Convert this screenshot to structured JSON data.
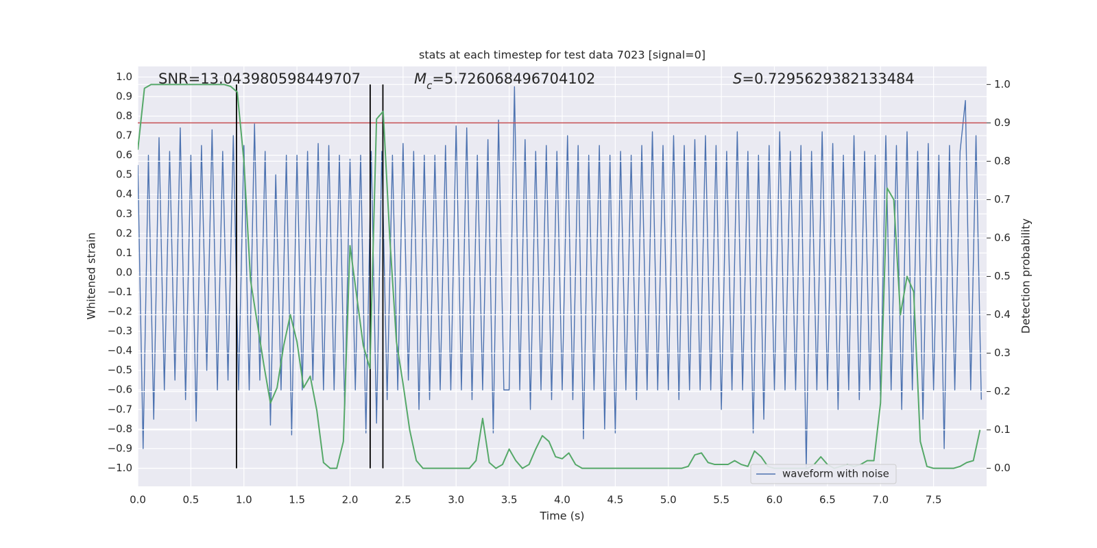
{
  "chart_data": {
    "type": "line",
    "title": "stats at each timestep for test data 7023 [signal=0]",
    "x_label": "Time (s)",
    "y_label": "Whitened strain",
    "y2_label": "Detection probability",
    "annotations": [
      {
        "text": "SNR=13.043980598449707"
      },
      {
        "symbol": "M",
        "subscript": "c",
        "text": "=5.726068496704102"
      },
      {
        "symbol": "S",
        "text": "=0.7295629382133484"
      }
    ],
    "xlim": [
      0,
      8.0
    ],
    "ylim": [
      -1.093,
      1.054
    ],
    "y2lim": [
      -0.047,
      1.047
    ],
    "xticks": [
      {
        "value": 0,
        "label": "0.0"
      },
      {
        "value": 0.5,
        "label": "0.5"
      },
      {
        "value": 1,
        "label": "1.0"
      },
      {
        "value": 1.5,
        "label": "1.5"
      },
      {
        "value": 2,
        "label": "2.0"
      },
      {
        "value": 2.5,
        "label": "2.5"
      },
      {
        "value": 3,
        "label": "3.0"
      },
      {
        "value": 3.5,
        "label": "3.5"
      },
      {
        "value": 4,
        "label": "4.0"
      },
      {
        "value": 4.5,
        "label": "4.5"
      },
      {
        "value": 5,
        "label": "5.0"
      },
      {
        "value": 5.5,
        "label": "5.5"
      },
      {
        "value": 6,
        "label": "6.0"
      },
      {
        "value": 6.5,
        "label": "6.5"
      },
      {
        "value": 7,
        "label": "7.0"
      },
      {
        "value": 7.5,
        "label": "7.5"
      }
    ],
    "yticks": [
      {
        "value": -1,
        "label": "−1.0"
      },
      {
        "value": -0.9,
        "label": "−0.9"
      },
      {
        "value": -0.8,
        "label": "−0.8"
      },
      {
        "value": -0.7,
        "label": "−0.7"
      },
      {
        "value": -0.6,
        "label": "−0.6"
      },
      {
        "value": -0.5,
        "label": "−0.5"
      },
      {
        "value": -0.4,
        "label": "−0.4"
      },
      {
        "value": -0.3,
        "label": "−0.3"
      },
      {
        "value": -0.2,
        "label": "−0.2"
      },
      {
        "value": -0.1,
        "label": "−0.1"
      },
      {
        "value": 0,
        "label": "0.0"
      },
      {
        "value": 0.1,
        "label": "0.1"
      },
      {
        "value": 0.2,
        "label": "0.2"
      },
      {
        "value": 0.3,
        "label": "0.3"
      },
      {
        "value": 0.4,
        "label": "0.4"
      },
      {
        "value": 0.5,
        "label": "0.5"
      },
      {
        "value": 0.6,
        "label": "0.6"
      },
      {
        "value": 0.7,
        "label": "0.7"
      },
      {
        "value": 0.8,
        "label": "0.8"
      },
      {
        "value": 0.9,
        "label": "0.9"
      },
      {
        "value": 1,
        "label": "1.0"
      }
    ],
    "y2ticks": [
      {
        "value": 0,
        "label": "0.0"
      },
      {
        "value": 0.1,
        "label": "0.1"
      },
      {
        "value": 0.2,
        "label": "0.2"
      },
      {
        "value": 0.3,
        "label": "0.3"
      },
      {
        "value": 0.4,
        "label": "0.4"
      },
      {
        "value": 0.5,
        "label": "0.5"
      },
      {
        "value": 0.6,
        "label": "0.6"
      },
      {
        "value": 0.7,
        "label": "0.7"
      },
      {
        "value": 0.8,
        "label": "0.8"
      },
      {
        "value": 0.9,
        "label": "0.9"
      },
      {
        "value": 1,
        "label": "1.0"
      }
    ],
    "grid": true,
    "legend": "lower right",
    "series": [
      {
        "name": "waveform with noise",
        "color": "#4c72b0",
        "x": [
          0,
          0.05,
          0.1,
          0.15,
          0.2,
          0.25,
          0.3,
          0.35,
          0.4,
          0.45,
          0.5,
          0.55,
          0.6,
          0.65,
          0.7,
          0.75,
          0.8,
          0.85,
          0.9,
          0.95,
          1,
          1.05,
          1.1,
          1.15,
          1.2,
          1.25,
          1.3,
          1.35,
          1.4,
          1.45,
          1.5,
          1.55,
          1.6,
          1.65,
          1.7,
          1.75,
          1.8,
          1.85,
          1.9,
          1.95,
          2,
          2.05,
          2.1,
          2.15,
          2.2,
          2.25,
          2.3,
          2.35,
          2.4,
          2.45,
          2.5,
          2.55,
          2.6,
          2.65,
          2.7,
          2.75,
          2.8,
          2.85,
          2.9,
          2.95,
          3,
          3.05,
          3.1,
          3.15,
          3.2,
          3.25,
          3.3,
          3.35,
          3.4,
          3.45,
          3.5,
          3.55,
          3.6,
          3.65,
          3.7,
          3.75,
          3.8,
          3.85,
          3.9,
          3.95,
          4,
          4.05,
          4.1,
          4.15,
          4.2,
          4.25,
          4.3,
          4.35,
          4.4,
          4.45,
          4.5,
          4.55,
          4.6,
          4.65,
          4.7,
          4.75,
          4.8,
          4.85,
          4.9,
          4.95,
          5,
          5.05,
          5.1,
          5.15,
          5.2,
          5.25,
          5.3,
          5.35,
          5.4,
          5.45,
          5.5,
          5.55,
          5.6,
          5.65,
          5.7,
          5.75,
          5.8,
          5.85,
          5.9,
          5.95,
          6,
          6.05,
          6.1,
          6.15,
          6.2,
          6.25,
          6.3,
          6.35,
          6.4,
          6.45,
          6.5,
          6.55,
          6.6,
          6.65,
          6.7,
          6.75,
          6.8,
          6.85,
          6.9,
          6.95,
          7,
          7.05,
          7.1,
          7.15,
          7.2,
          7.25,
          7.3,
          7.35,
          7.4,
          7.45,
          7.5,
          7.55,
          7.6,
          7.65,
          7.7,
          7.75,
          7.8,
          7.85,
          7.9,
          7.95
        ],
        "values": [
          0.55,
          -0.9,
          0.6,
          -0.75,
          0.69,
          -0.6,
          0.62,
          -0.55,
          0.74,
          -0.65,
          0.6,
          -0.76,
          0.65,
          -0.5,
          0.73,
          -0.6,
          0.62,
          -0.55,
          0.7,
          -0.6,
          0.65,
          -0.6,
          0.76,
          -0.55,
          0.62,
          -0.78,
          0.5,
          -0.6,
          0.6,
          -0.83,
          0.6,
          -0.6,
          0.62,
          -0.55,
          0.66,
          -0.6,
          0.65,
          -0.6,
          0.6,
          -0.7,
          0.58,
          -0.6,
          0.6,
          -0.82,
          0.62,
          -0.77,
          0.62,
          -0.65,
          0.6,
          -0.6,
          0.66,
          -0.55,
          0.62,
          -0.7,
          0.6,
          -0.65,
          0.6,
          -0.6,
          0.65,
          -0.6,
          0.75,
          -0.6,
          0.74,
          -0.65,
          0.6,
          -0.6,
          0.68,
          -0.82,
          0.78,
          -0.6,
          -0.6,
          0.95,
          -0.6,
          0.68,
          -0.7,
          0.62,
          -0.6,
          0.65,
          -0.65,
          0.62,
          -0.6,
          0.7,
          -0.65,
          0.65,
          -0.85,
          0.6,
          -0.6,
          0.65,
          -0.8,
          0.6,
          -0.82,
          0.62,
          -0.6,
          0.6,
          -0.65,
          0.65,
          -0.6,
          0.72,
          -0.6,
          0.65,
          -0.6,
          0.7,
          -0.65,
          0.65,
          -0.6,
          0.68,
          -0.6,
          0.7,
          -0.6,
          0.65,
          -0.7,
          0.62,
          -0.6,
          0.72,
          -0.6,
          0.62,
          -0.82,
          0.6,
          -0.75,
          0.65,
          -0.6,
          0.72,
          -0.6,
          0.62,
          -0.6,
          0.65,
          -1.0,
          0.62,
          -0.6,
          0.72,
          -0.6,
          0.66,
          -0.7,
          0.6,
          -0.6,
          0.7,
          -0.65,
          0.62,
          -0.6,
          0.6,
          -0.65,
          0.7,
          -0.6,
          0.65,
          -0.7,
          0.72,
          -0.6,
          0.62,
          -0.75,
          0.66,
          -0.6,
          0.6,
          -0.9,
          0.65,
          -0.6,
          0.62,
          0.88,
          -0.6,
          0.7,
          -0.65
        ]
      },
      {
        "color": "#55a868",
        "axis": "y2",
        "x": [
          0,
          0.0625,
          0.125,
          0.1875,
          0.25,
          0.3125,
          0.375,
          0.4375,
          0.5,
          0.5625,
          0.625,
          0.6875,
          0.75,
          0.8125,
          0.875,
          0.9375,
          1,
          1.0625,
          1.125,
          1.1875,
          1.25,
          1.3125,
          1.375,
          1.4375,
          1.5,
          1.5625,
          1.625,
          1.6875,
          1.75,
          1.8125,
          1.875,
          1.9375,
          2,
          2.0625,
          2.125,
          2.1875,
          2.25,
          2.3125,
          2.375,
          2.4375,
          2.5,
          2.5625,
          2.625,
          2.6875,
          2.75,
          2.8125,
          2.875,
          2.9375,
          3,
          3.0625,
          3.125,
          3.1875,
          3.25,
          3.3125,
          3.375,
          3.4375,
          3.5,
          3.5625,
          3.625,
          3.6875,
          3.75,
          3.8125,
          3.875,
          3.9375,
          4,
          4.0625,
          4.125,
          4.1875,
          4.25,
          4.3125,
          4.375,
          4.4375,
          4.5,
          4.5625,
          4.625,
          4.6875,
          4.75,
          4.8125,
          4.875,
          4.9375,
          5,
          5.0625,
          5.125,
          5.1875,
          5.25,
          5.3125,
          5.375,
          5.4375,
          5.5,
          5.5625,
          5.625,
          5.6875,
          5.75,
          5.8125,
          5.875,
          5.9375,
          6,
          6.0625,
          6.125,
          6.1875,
          6.25,
          6.3125,
          6.375,
          6.4375,
          6.5,
          6.5625,
          6.625,
          6.6875,
          6.75,
          6.8125,
          6.875,
          6.9375,
          7,
          7.0625,
          7.125,
          7.1875,
          7.25,
          7.3125,
          7.375,
          7.4375,
          7.5,
          7.5625,
          7.625,
          7.6875,
          7.75,
          7.8125,
          7.875,
          7.9375
        ],
        "values": [
          0.83,
          0.99,
          1.0,
          1.0,
          1.0,
          1.0,
          1.0,
          1.0,
          1.0,
          1.0,
          1.0,
          1.0,
          1.0,
          1.0,
          0.995,
          0.98,
          0.8,
          0.49,
          0.38,
          0.27,
          0.17,
          0.21,
          0.32,
          0.4,
          0.33,
          0.21,
          0.24,
          0.15,
          0.015,
          0.0,
          0.0,
          0.07,
          0.58,
          0.45,
          0.32,
          0.26,
          0.91,
          0.93,
          0.6,
          0.33,
          0.22,
          0.1,
          0.02,
          0.0,
          0.0,
          0.0,
          0.0,
          0.0,
          0.0,
          0.0,
          0.0,
          0.02,
          0.13,
          0.015,
          0.0,
          0.01,
          0.05,
          0.02,
          0.0,
          0.01,
          0.05,
          0.085,
          0.07,
          0.03,
          0.025,
          0.04,
          0.01,
          0.0,
          0.0,
          0.0,
          0.0,
          0.0,
          0.0,
          0.0,
          0.0,
          0.0,
          0.0,
          0.0,
          0.0,
          0.0,
          0.0,
          0.0,
          0.0,
          0.005,
          0.035,
          0.04,
          0.015,
          0.01,
          0.01,
          0.01,
          0.02,
          0.01,
          0.005,
          0.045,
          0.03,
          0.005,
          0.0,
          0.0,
          0.0,
          0.0,
          0.0,
          0.0,
          0.01,
          0.03,
          0.01,
          0.0,
          0.005,
          0.01,
          0.005,
          0.01,
          0.02,
          0.02,
          0.17,
          0.73,
          0.7,
          0.4,
          0.5,
          0.46,
          0.07,
          0.005,
          0.0,
          0.0,
          0.0,
          0.0,
          0.005,
          0.015,
          0.02,
          0.1
        ]
      }
    ],
    "hline": {
      "y": 0.9,
      "axis": "y2",
      "color": "#c44e52"
    },
    "vlines": {
      "x": [
        0.93,
        2.19,
        2.31
      ],
      "ymin": 0,
      "ymax": 1,
      "axis": "y2",
      "color": "#000000"
    }
  }
}
